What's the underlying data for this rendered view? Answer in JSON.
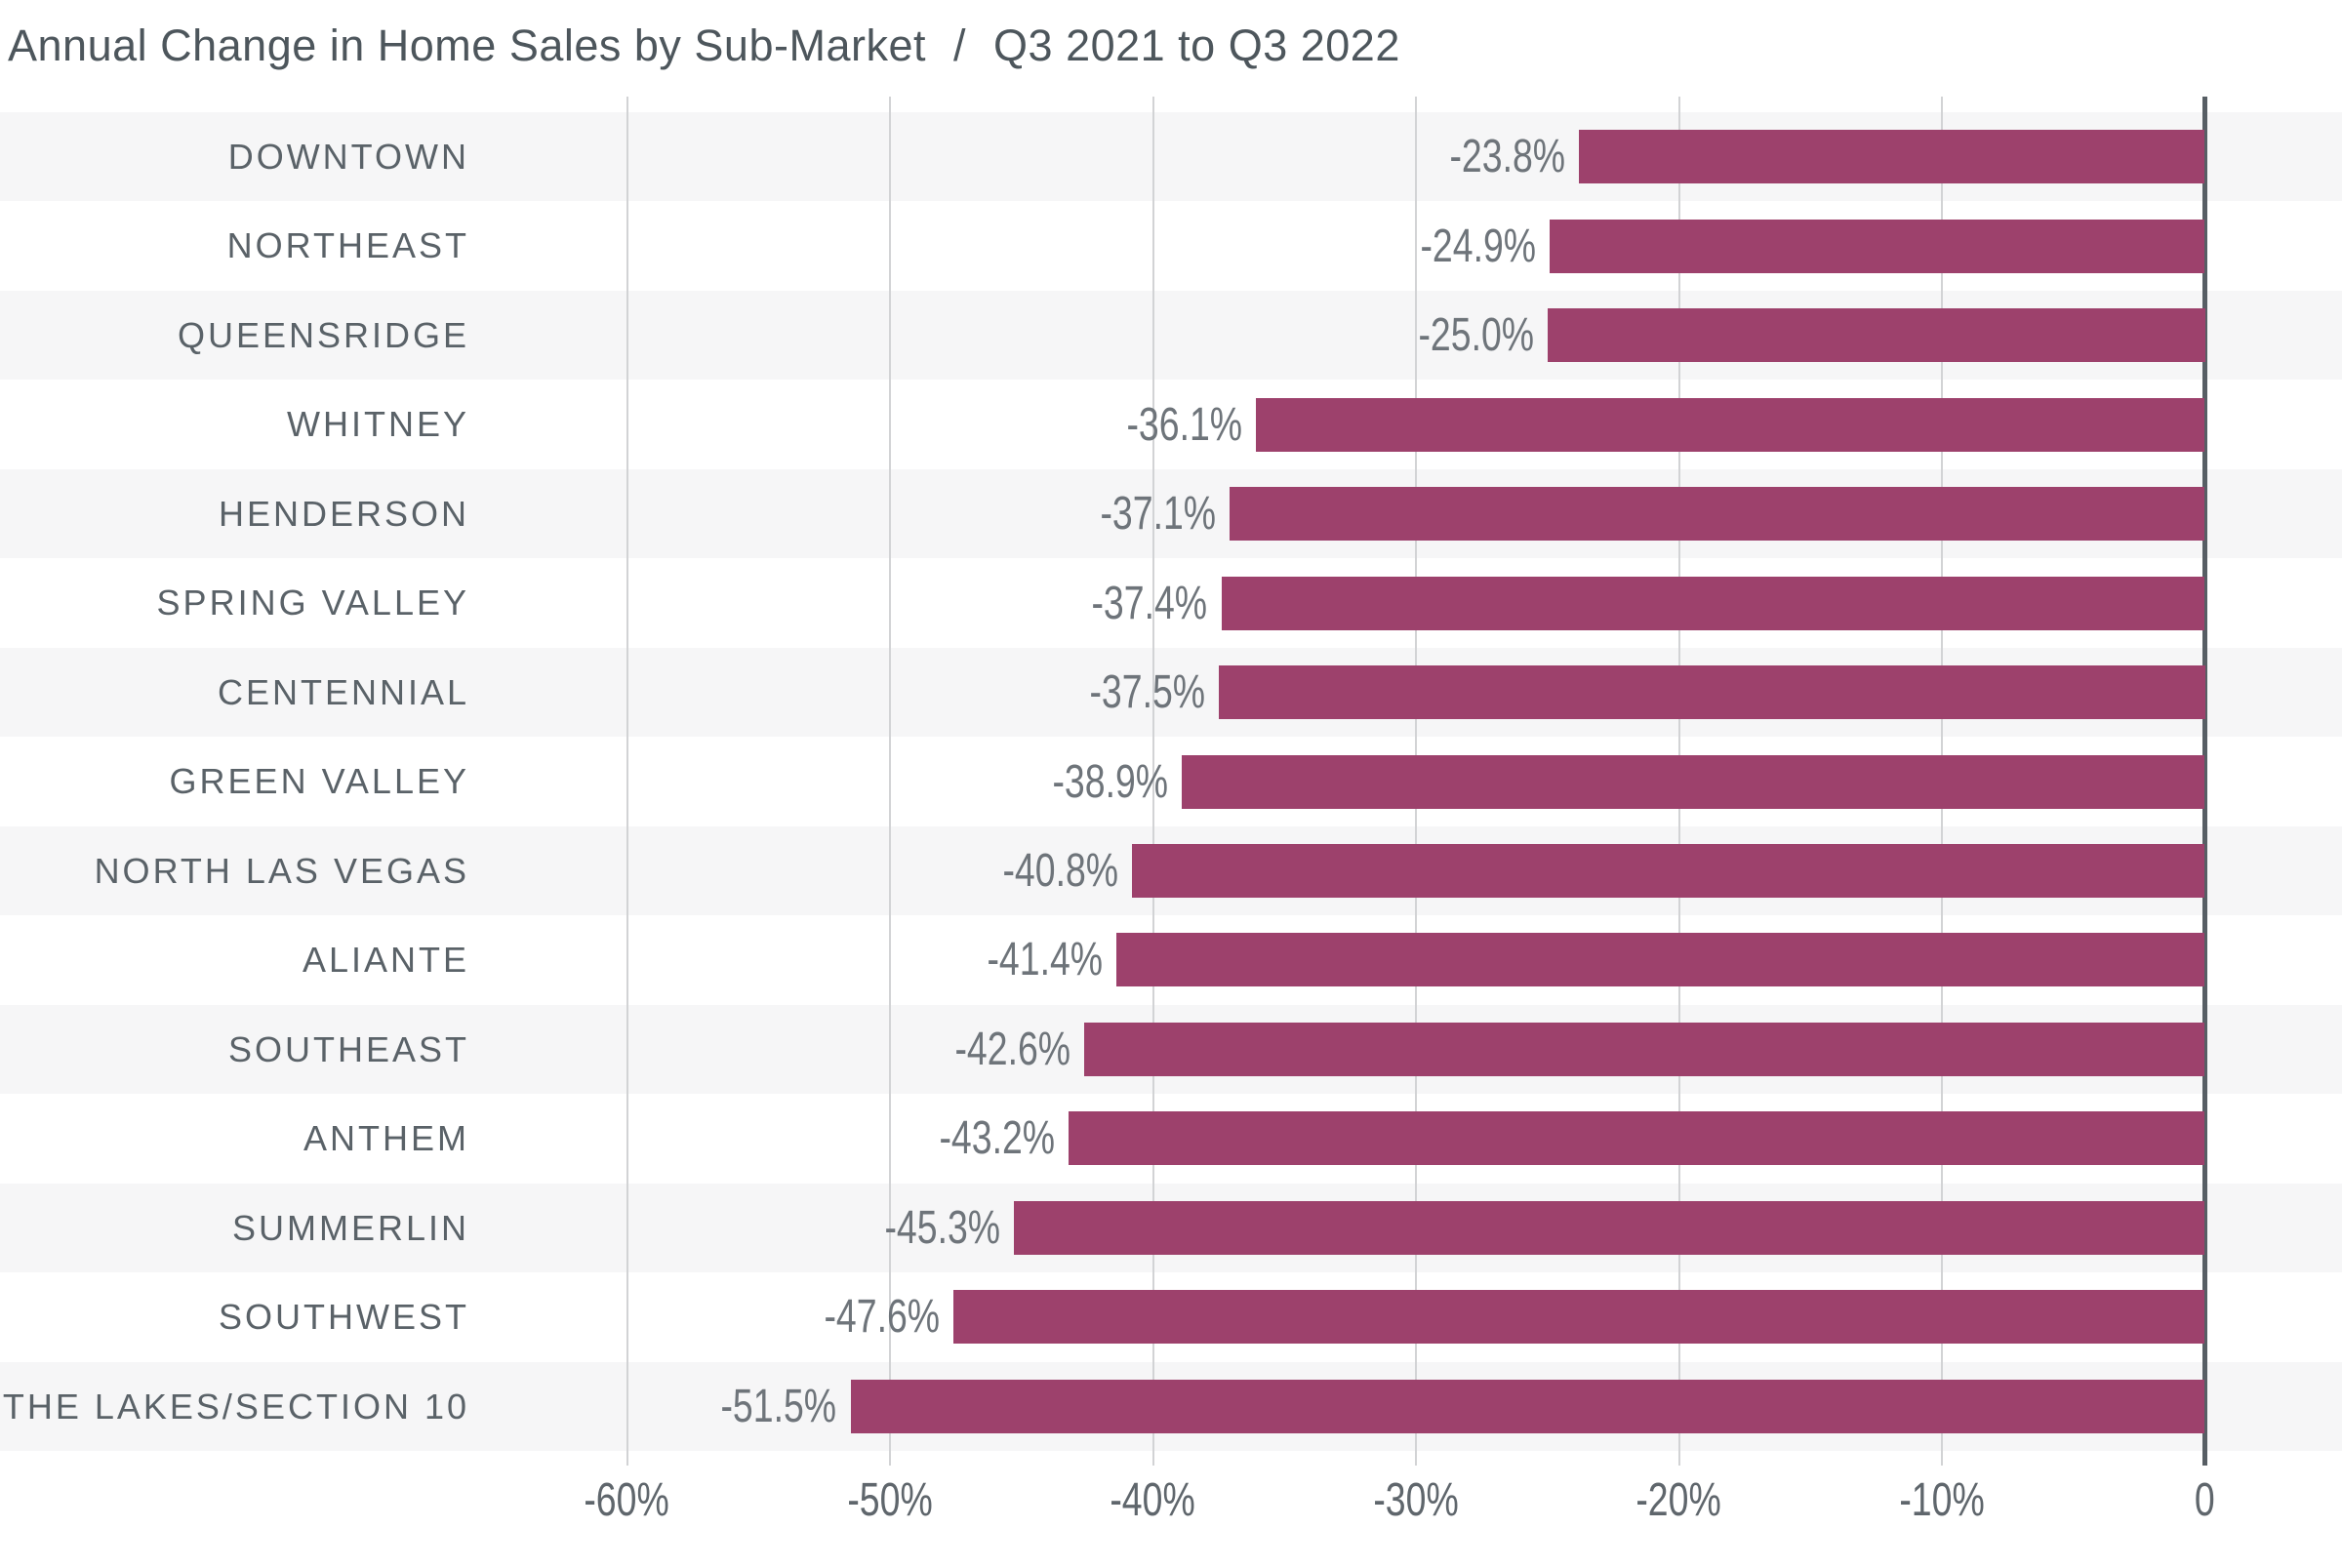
{
  "title": {
    "main": "Annual Change in Home Sales by Sub-Market",
    "separator": "/",
    "period": "Q3 2021 to Q3 2022"
  },
  "chart_data": {
    "type": "bar",
    "orientation": "horizontal",
    "title": "Annual Change in Home Sales by Sub-Market / Q3 2021 to Q3 2022",
    "xlabel": "",
    "ylabel": "",
    "categories": [
      "DOWNTOWN",
      "NORTHEAST",
      "QUEENSRIDGE",
      "WHITNEY",
      "HENDERSON",
      "SPRING VALLEY",
      "CENTENNIAL",
      "GREEN VALLEY",
      "NORTH LAS VEGAS",
      "ALIANTE",
      "SOUTHEAST",
      "ANTHEM",
      "SUMMERLIN",
      "SOUTHWEST",
      "THE LAKES/SECTION 10"
    ],
    "values": [
      -23.8,
      -24.9,
      -25.0,
      -36.1,
      -37.1,
      -37.4,
      -37.5,
      -38.9,
      -40.8,
      -41.4,
      -42.6,
      -43.2,
      -45.3,
      -47.6,
      -51.5
    ],
    "value_labels": [
      "-23.8%",
      "-24.9%",
      "-25.0%",
      "-36.1%",
      "-37.1%",
      "-37.4%",
      "-37.5%",
      "-38.9%",
      "-40.8%",
      "-41.4%",
      "-42.6%",
      "-43.2%",
      "-45.3%",
      "-47.6%",
      "-51.5%"
    ],
    "x_ticks": [
      {
        "value": -60,
        "label": "-60%"
      },
      {
        "value": -50,
        "label": "-50%"
      },
      {
        "value": -40,
        "label": "-40%"
      },
      {
        "value": -30,
        "label": "-30%"
      },
      {
        "value": -20,
        "label": "-20%"
      },
      {
        "value": -10,
        "label": "-10%"
      },
      {
        "value": 0,
        "label": "0"
      }
    ],
    "xlim": [
      -60,
      0
    ],
    "grid": true,
    "legend": false,
    "baseline": "right-zero",
    "value_label_position": "left-of-bar",
    "row_striping": "alternating-starting-shaded"
  },
  "colors": {
    "background": "#ffffff",
    "row_band": "#f6f6f7",
    "gridline": "#d2d3d5",
    "zero_line": "#575e64",
    "bar": "#9d416c",
    "title": "#4d565c",
    "category_label": "#5a6268",
    "value_label": "#6e747a",
    "tick_label": "#5f666c"
  }
}
